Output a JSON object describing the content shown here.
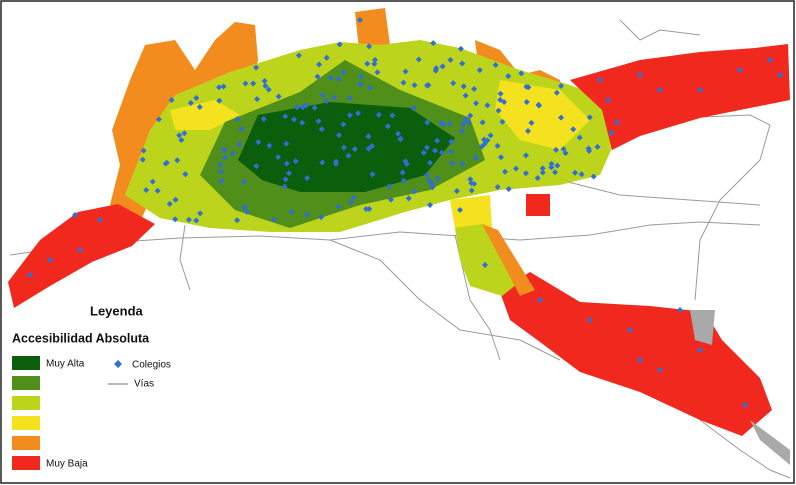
{
  "legend": {
    "title": "Leyenda",
    "subtitle": "Accesibilidad Absoluta",
    "levels": [
      {
        "label": "Muy Alta",
        "color": "#0b5e0b"
      },
      {
        "color": "#4f8f1a"
      },
      {
        "color": "#bcd41c"
      },
      {
        "color": "#f5e21e"
      },
      {
        "color": "#f28c1e"
      },
      {
        "label": "Muy Baja",
        "color": "#f0281e"
      }
    ],
    "points": {
      "label": "Colegios",
      "color": "#2f6fd6"
    },
    "roads": {
      "label": "Vías",
      "color": "#8a8a8a"
    }
  }
}
